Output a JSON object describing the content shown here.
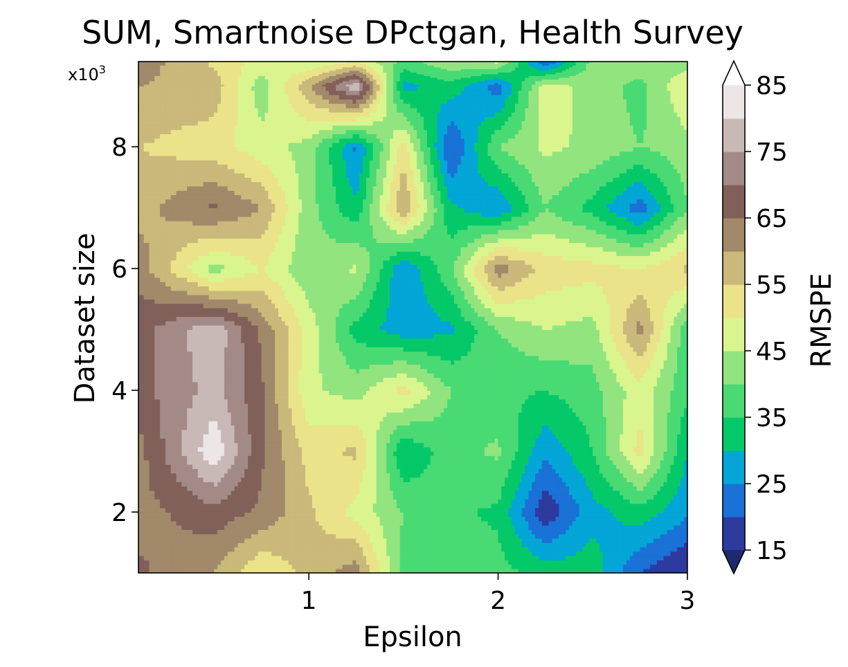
{
  "chart_data": {
    "type": "contourf",
    "title": "SUM, Smartnoise DPctgan, Health Survey",
    "xlabel": "Epsilon",
    "ylabel": "Dataset size",
    "y_multiplier_label": "x10",
    "y_multiplier_exp": "3",
    "colorbar_label": "RMSPE",
    "xlim": [
      0.1,
      3.0
    ],
    "ylim": [
      1000,
      9400
    ],
    "x_ticks": [
      1,
      2,
      3
    ],
    "y_ticks": [
      2,
      4,
      6,
      8
    ],
    "colorbar_ticks": [
      15,
      25,
      35,
      45,
      55,
      65,
      75,
      85
    ],
    "levels": [
      15,
      20,
      25,
      30,
      35,
      40,
      45,
      50,
      55,
      60,
      65,
      70,
      75,
      80,
      85
    ],
    "level_colors": [
      "#2d3a9e",
      "#1a71d6",
      "#03a6d6",
      "#05c969",
      "#49da74",
      "#92e47f",
      "#daf58e",
      "#ebe389",
      "#c9b97a",
      "#a1896a",
      "#82605a",
      "#a38a87",
      "#c8b9b7",
      "#ede6e6"
    ],
    "extend": "both",
    "x": [
      0.1,
      0.5,
      0.75,
      1.0,
      1.25,
      1.5,
      1.75,
      2.0,
      2.25,
      2.5,
      2.75,
      3.0
    ],
    "y": [
      1000,
      2000,
      3000,
      4000,
      5000,
      6000,
      7000,
      8000,
      9000,
      9400
    ],
    "z": [
      [
        66,
        60,
        50,
        57,
        63,
        38,
        40,
        37,
        33,
        33,
        20,
        14
      ],
      [
        63,
        68,
        64,
        56,
        48,
        40,
        36,
        34,
        16,
        28,
        33,
        26
      ],
      [
        63,
        84,
        66,
        53,
        56,
        30,
        38,
        41,
        26,
        35,
        52,
        30
      ],
      [
        68,
        77,
        66,
        46,
        43,
        52,
        40,
        36,
        35,
        38,
        48,
        36
      ],
      [
        68,
        79,
        64,
        48,
        33,
        27,
        29,
        40,
        45,
        43,
        62,
        36
      ],
      [
        63,
        43,
        50,
        41,
        46,
        25,
        39,
        63,
        53,
        52,
        50,
        56
      ],
      [
        58,
        66,
        60,
        42,
        31,
        60,
        31,
        25,
        40,
        33,
        22,
        40
      ],
      [
        55,
        52,
        47,
        43,
        24,
        53,
        19,
        40,
        46,
        44,
        40,
        43
      ],
      [
        60,
        58,
        42,
        59,
        80,
        28,
        33,
        22,
        48,
        43,
        38,
        50
      ],
      [
        63,
        54,
        48,
        45,
        50,
        38,
        44,
        46,
        20,
        42,
        44,
        42
      ]
    ]
  }
}
